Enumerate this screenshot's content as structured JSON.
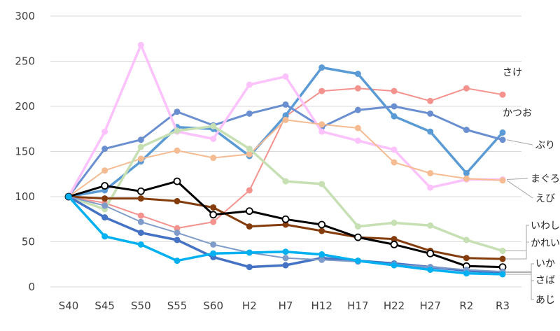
{
  "chart_data": {
    "type": "line",
    "categories": [
      "S40",
      "S45",
      "S50",
      "S55",
      "S60",
      "H2",
      "H7",
      "H12",
      "H17",
      "H22",
      "H27",
      "R2",
      "R3"
    ],
    "ylim": [
      0,
      300
    ],
    "yticks": [
      0,
      50,
      100,
      150,
      200,
      250,
      300
    ],
    "grid": true,
    "legend": "right (labels beside line ends)",
    "series": [
      {
        "name": "さけ",
        "color": "#f4928e",
        "width": 2,
        "values": [
          100,
          93,
          79,
          65,
          72,
          107,
          189,
          217,
          220,
          217,
          206,
          220,
          213
        ]
      },
      {
        "name": "かつお",
        "color": "#5b9bd5",
        "width": 3.5,
        "values": [
          100,
          107,
          139,
          177,
          175,
          145,
          190,
          243,
          236,
          189,
          172,
          126,
          171
        ]
      },
      {
        "name": "ぶり",
        "color": "#6a8fd0",
        "width": 3,
        "values": [
          100,
          153,
          163,
          194,
          179,
          192,
          202,
          177,
          196,
          200,
          192,
          174,
          163
        ]
      },
      {
        "name": "まぐろ",
        "color": "#fbc2fb",
        "width": 3.5,
        "values": [
          100,
          172,
          268,
          172,
          164,
          224,
          233,
          172,
          162,
          152,
          110,
          119,
          119
        ]
      },
      {
        "name": "えび",
        "color": "#f5bb93",
        "width": 2,
        "values": [
          100,
          129,
          142,
          151,
          143,
          147,
          185,
          180,
          176,
          138,
          126,
          120,
          118
        ]
      },
      {
        "name": "いわし",
        "color": "#c6e0b4",
        "width": 3.5,
        "values": [
          100,
          86,
          155,
          173,
          178,
          153,
          117,
          114,
          67,
          71,
          68,
          52,
          40
        ]
      },
      {
        "name": "かれい",
        "color": "#843c0c",
        "width": 3,
        "values": [
          100,
          98,
          98,
          95,
          88,
          67,
          69,
          62,
          55,
          53,
          40,
          32,
          31
        ]
      },
      {
        "name": "",
        "color": "#000000",
        "width": 3,
        "hollow": true,
        "values": [
          100,
          112,
          106,
          117,
          80,
          84,
          75,
          69,
          55,
          47,
          37,
          23,
          22
        ]
      },
      {
        "name": "いか",
        "color": "#4472c4",
        "width": 3.5,
        "values": [
          100,
          77,
          60,
          52,
          33,
          22,
          24,
          32,
          29,
          26,
          22,
          18,
          16
        ]
      },
      {
        "name": "さば",
        "color": "#7f9bc9",
        "width": 2,
        "values": [
          100,
          90,
          72,
          60,
          47,
          38,
          32,
          30,
          28,
          25,
          22,
          19,
          17
        ]
      },
      {
        "name": "あじ",
        "color": "#00b0f0",
        "width": 3.5,
        "values": [
          100,
          56,
          47,
          29,
          37,
          38,
          39,
          36,
          29,
          24,
          19,
          15,
          14
        ]
      }
    ]
  }
}
